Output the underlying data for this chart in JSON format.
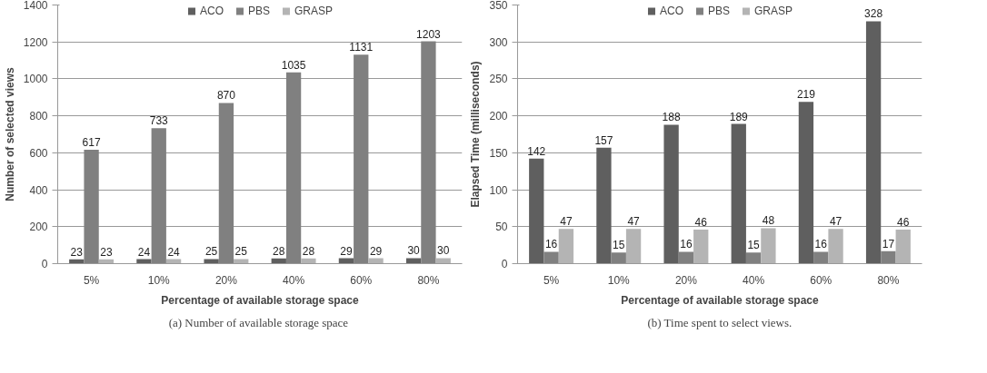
{
  "chart_data": [
    {
      "type": "bar",
      "categories": [
        "5%",
        "10%",
        "20%",
        "40%",
        "60%",
        "80%"
      ],
      "xlabel": "Percentage of available storage space",
      "ylabel": "Number of selected views",
      "annotations": [
        "(a)  Number of available storage space"
      ],
      "ylim": [
        0,
        1400
      ],
      "yticks": [
        0,
        200,
        400,
        600,
        800,
        1000,
        1200,
        1400
      ],
      "grid": "y",
      "legend": "top",
      "data_labels": true,
      "series": [
        {
          "name": "ACO",
          "color": "#5f5f5f",
          "values": [
            23,
            24,
            25,
            28,
            29,
            30
          ]
        },
        {
          "name": "PBS",
          "color": "#808080",
          "values": [
            617,
            733,
            870,
            1035,
            1131,
            1203
          ]
        },
        {
          "name": "GRASP",
          "color": "#b4b4b4",
          "values": [
            23,
            24,
            25,
            28,
            29,
            30
          ]
        }
      ]
    },
    {
      "type": "bar",
      "categories": [
        "5%",
        "10%",
        "20%",
        "40%",
        "60%",
        "80%"
      ],
      "xlabel": "Percentage of available storage space",
      "ylabel": "Elapsed Time (milliseconds)",
      "annotations": [
        "(b) Time spent to select views."
      ],
      "ylim": [
        0,
        350
      ],
      "yticks": [
        0,
        50,
        100,
        150,
        200,
        250,
        300,
        350
      ],
      "grid": "y",
      "legend": "top",
      "data_labels": true,
      "series": [
        {
          "name": "ACO",
          "color": "#5f5f5f",
          "values": [
            142,
            157,
            188,
            189,
            219,
            328
          ]
        },
        {
          "name": "PBS",
          "color": "#808080",
          "values": [
            16,
            15,
            16,
            15,
            16,
            17
          ]
        },
        {
          "name": "GRASP",
          "color": "#b4b4b4",
          "values": [
            47,
            47,
            46,
            48,
            47,
            46
          ]
        }
      ]
    }
  ]
}
